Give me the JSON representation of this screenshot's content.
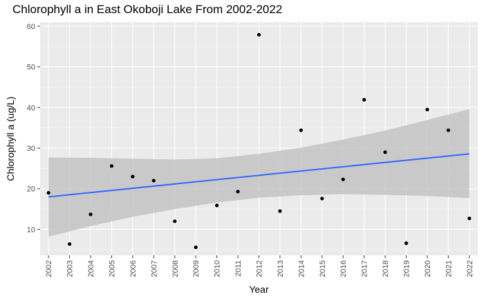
{
  "chart_data": {
    "type": "scatter",
    "title": "Chlorophyll a in East Okoboji Lake From 2002-2022",
    "xlabel": "Year",
    "ylabel": "Chlorophyll a (ug/L)",
    "x_ticks": [
      "2002",
      "2003",
      "2004",
      "2005",
      "2006",
      "2007",
      "2008",
      "2009",
      "2010",
      "2011",
      "2012",
      "2013",
      "2014",
      "2015",
      "2016",
      "2017",
      "2018",
      "2019",
      "2020",
      "2021",
      "2022"
    ],
    "y_ticks": [
      10,
      20,
      30,
      40,
      50,
      60
    ],
    "xlim": [
      2001.6,
      2022.4
    ],
    "ylim": [
      3.6,
      61
    ],
    "grid": true,
    "series": [
      {
        "type": "scatter",
        "x": [
          2002,
          2003,
          2004,
          2005,
          2006,
          2007,
          2008,
          2009,
          2010,
          2011,
          2012,
          2013,
          2014,
          2015,
          2016,
          2017,
          2018,
          2019,
          2020,
          2021,
          2022
        ],
        "y": [
          19.0,
          6.4,
          13.7,
          25.6,
          23.0,
          22.0,
          12.0,
          5.6,
          15.9,
          19.3,
          57.9,
          14.5,
          34.4,
          17.6,
          22.3,
          41.9,
          29.0,
          6.6,
          39.5,
          34.4,
          12.7
        ]
      }
    ],
    "trend": {
      "type": "linear_fit",
      "start": [
        2002,
        18.0
      ],
      "end": [
        2022,
        28.6
      ],
      "color": "#3366FF"
    },
    "confidence_band": [
      {
        "x": 2002,
        "low": 8.2,
        "high": 27.7
      },
      {
        "x": 2004,
        "low": 10.8,
        "high": 27.6
      },
      {
        "x": 2006,
        "low": 13.1,
        "high": 27.4
      },
      {
        "x": 2008,
        "low": 15.0,
        "high": 27.2
      },
      {
        "x": 2010,
        "low": 16.6,
        "high": 27.5
      },
      {
        "x": 2012,
        "low": 17.8,
        "high": 28.6
      },
      {
        "x": 2014,
        "low": 18.4,
        "high": 30.1
      },
      {
        "x": 2016,
        "low": 18.7,
        "high": 32.1
      },
      {
        "x": 2018,
        "low": 18.5,
        "high": 34.3
      },
      {
        "x": 2020,
        "low": 18.2,
        "high": 36.9
      },
      {
        "x": 2022,
        "low": 17.7,
        "high": 39.6
      }
    ],
    "colors": {
      "panel": "#EBEBEB",
      "grid_major": "#FFFFFF",
      "grid_minor": "#F5F5F5",
      "points": "#000000",
      "band": "#BEBEBE",
      "tick_text": "#4D4D4D",
      "tick_mark": "#333333"
    }
  }
}
